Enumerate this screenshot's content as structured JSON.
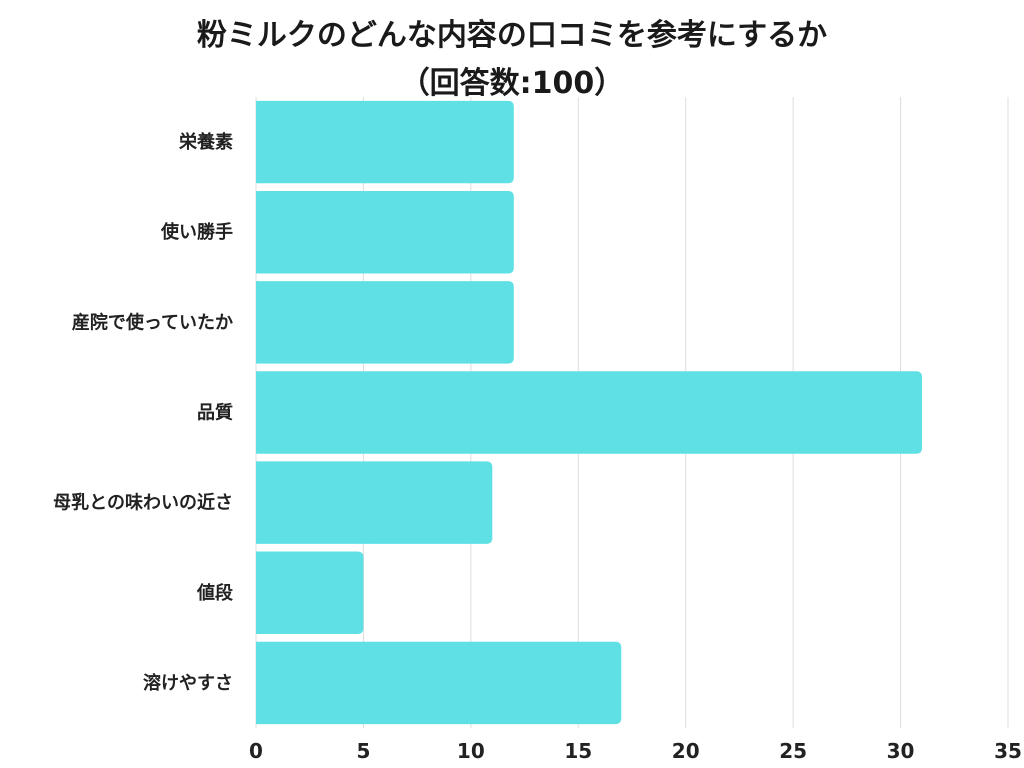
{
  "title_line1": "粉ミルクのどんな内容の口コミを参考にするか",
  "title_line2": "（回答数:100）",
  "chart_data": {
    "type": "bar",
    "orientation": "horizontal",
    "categories": [
      "栄養素",
      "使い勝手",
      "産院で使っていたか",
      "品質",
      "母乳との味わいの近さ",
      "値段",
      "溶けやすさ"
    ],
    "values": [
      12,
      12,
      12,
      31,
      11,
      5,
      17
    ],
    "xlim": [
      0,
      35
    ],
    "xticks": [
      0,
      5,
      10,
      15,
      20,
      25,
      30,
      35
    ],
    "grid": "vertical",
    "legend": "none",
    "bar_color": "#5fe0e5",
    "grid_color": "#dddddd"
  }
}
